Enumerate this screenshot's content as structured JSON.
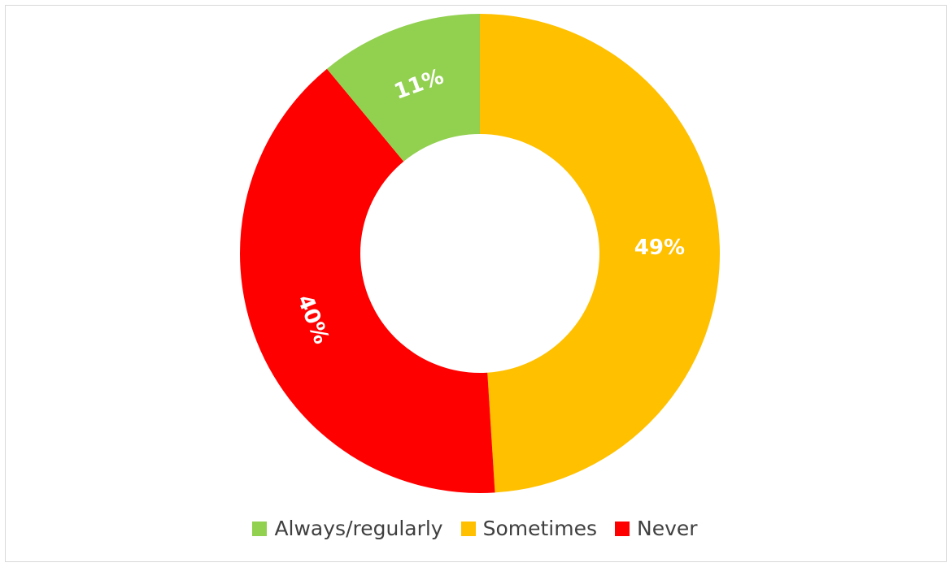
{
  "chart_data": {
    "type": "pie",
    "donut": true,
    "categories": [
      "Always/regularly",
      "Sometimes",
      "Never"
    ],
    "values": [
      11,
      49,
      40
    ],
    "value_labels": [
      "11%",
      "49%",
      "40%"
    ],
    "colors": [
      "#92d050",
      "#ffc000",
      "#ff0000"
    ],
    "legend": {
      "position": "bottom",
      "items": [
        "Always/regularly",
        "Sometimes",
        "Never"
      ]
    }
  }
}
